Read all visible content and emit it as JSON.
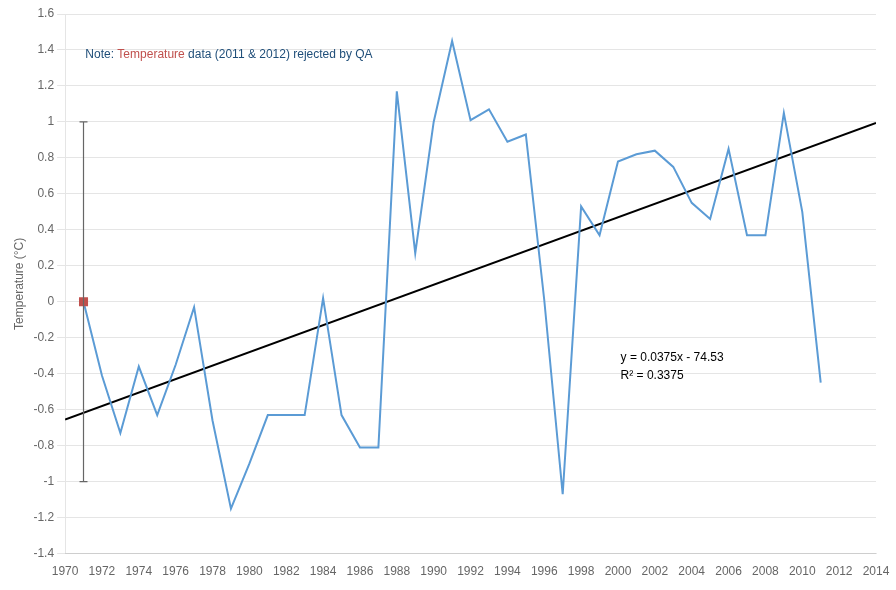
{
  "chart_data": {
    "type": "line",
    "ylabel": "Temperature (°C)",
    "xlim": [
      1970,
      2014
    ],
    "ylim": [
      -1.4,
      1.6
    ],
    "xticks": [
      1970,
      1972,
      1974,
      1976,
      1978,
      1980,
      1982,
      1984,
      1986,
      1988,
      1990,
      1992,
      1994,
      1996,
      1998,
      2000,
      2002,
      2004,
      2006,
      2008,
      2010,
      2012,
      2014
    ],
    "yticks": [
      -1.4,
      -1.2,
      -1,
      -0.8,
      -0.6,
      -0.4,
      -0.2,
      0,
      0.2,
      0.4,
      0.6,
      0.8,
      1,
      1.2,
      1.4,
      1.6
    ],
    "grid": "y",
    "series": [
      {
        "type": "line",
        "color": "#5B9BD5",
        "x": [
          1971,
          1972,
          1973,
          1974,
          1975,
          1976,
          1977,
          1978,
          1979,
          1980,
          1981,
          1982,
          1983,
          1984,
          1985,
          1986,
          1987,
          1988,
          1989,
          1990,
          1991,
          1992,
          1993,
          1994,
          1995,
          1996,
          1997,
          1998,
          1999,
          2000,
          2001,
          2002,
          2003,
          2004,
          2005,
          2006,
          2007,
          2008,
          2009,
          2010,
          2011
        ],
        "values": [
          0.0,
          -0.41,
          -0.73,
          -0.36,
          -0.63,
          -0.35,
          -0.03,
          -0.66,
          -1.15,
          -0.9,
          -0.63,
          -0.63,
          -0.63,
          0.02,
          -0.63,
          -0.81,
          -0.81,
          1.17,
          0.27,
          1.0,
          1.45,
          1.01,
          1.07,
          0.89,
          0.93,
          0.01,
          -1.07,
          0.53,
          0.37,
          0.78,
          0.82,
          0.84,
          0.75,
          0.55,
          0.46,
          0.85,
          0.37,
          0.37,
          1.05,
          0.5,
          -0.45
        ]
      },
      {
        "type": "scatter",
        "color": "#C0504D",
        "marker": "square",
        "x": [
          1971
        ],
        "values": [
          0.0
        ],
        "error": [
          1.0
        ]
      },
      {
        "type": "line",
        "color": "#000000",
        "x": [
          1970,
          2014
        ],
        "values": [
          -0.655,
          0.995
        ]
      }
    ],
    "annotations": [
      {
        "parts": [
          {
            "text": "Note: ",
            "color": "#1F4E79"
          },
          {
            "text": "Temperature",
            "color": "#C0504D"
          },
          {
            "text": " data (2011 & 2012) rejected by QA",
            "color": "#1F4E79"
          }
        ]
      },
      {
        "lines": [
          "y = 0.0375x - 74.53",
          "R² = 0.3375"
        ],
        "color": "#000000"
      }
    ]
  }
}
